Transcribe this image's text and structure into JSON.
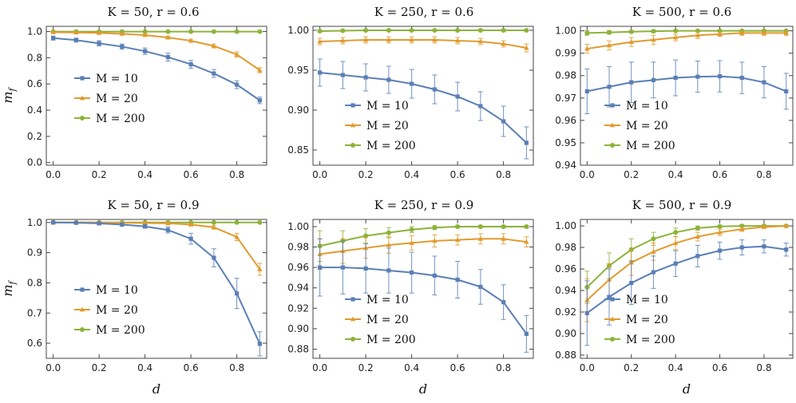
{
  "figure": {
    "ylabel": "m_f",
    "xlabel": "d"
  },
  "chart_data": [
    {
      "type": "line",
      "title": "K = 50, r = 0.6",
      "xlabel": "",
      "ylabel": "m_f",
      "xlim": [
        -0.03,
        0.93
      ],
      "ylim": [
        -0.02,
        1.04
      ],
      "xticks": [
        "0.0",
        "0.2",
        "0.4",
        "0.6",
        "0.8"
      ],
      "yticks": [
        "0.0",
        "0.2",
        "0.4",
        "0.6",
        "0.8",
        "1.0"
      ],
      "x": [
        0.0,
        0.1,
        0.2,
        0.3,
        0.4,
        0.5,
        0.6,
        0.7,
        0.8,
        0.9
      ],
      "legend_position": "left-middle",
      "series": [
        {
          "name": "M = 10",
          "color": "#5b7fb5",
          "marker": "square",
          "values": [
            0.95,
            0.935,
            0.91,
            0.885,
            0.85,
            0.805,
            0.75,
            0.68,
            0.595,
            0.475
          ],
          "err": [
            0.015,
            0.015,
            0.02,
            0.02,
            0.025,
            0.03,
            0.03,
            0.03,
            0.03,
            0.025
          ]
        },
        {
          "name": "M = 20",
          "color": "#e19b2f",
          "marker": "triangle",
          "values": [
            0.995,
            0.993,
            0.99,
            0.983,
            0.973,
            0.955,
            0.93,
            0.89,
            0.825,
            0.705
          ],
          "err": [
            0.003,
            0.004,
            0.005,
            0.006,
            0.008,
            0.01,
            0.012,
            0.015,
            0.02,
            0.02
          ]
        },
        {
          "name": "M = 200",
          "color": "#8db33a",
          "marker": "circle",
          "values": [
            1.0,
            1.0,
            1.0,
            1.0,
            1.0,
            1.0,
            1.0,
            1.0,
            1.0,
            1.0
          ],
          "err": [
            0.001,
            0.001,
            0.001,
            0.001,
            0.001,
            0.001,
            0.001,
            0.001,
            0.001,
            0.001
          ]
        }
      ]
    },
    {
      "type": "line",
      "title": "K = 250, r = 0.6",
      "xlabel": "",
      "ylabel": "",
      "xlim": [
        -0.03,
        0.93
      ],
      "ylim": [
        0.831,
        1.005
      ],
      "xticks": [
        "0.0",
        "0.2",
        "0.4",
        "0.6",
        "0.8"
      ],
      "yticks": [
        "0.85",
        "0.90",
        "0.95",
        "1.00"
      ],
      "x": [
        0.0,
        0.1,
        0.2,
        0.3,
        0.4,
        0.5,
        0.6,
        0.7,
        0.8,
        0.9
      ],
      "legend_position": "left-middle",
      "series": [
        {
          "name": "M = 10",
          "color": "#5b7fb5",
          "marker": "square",
          "values": [
            0.947,
            0.944,
            0.941,
            0.938,
            0.933,
            0.926,
            0.917,
            0.905,
            0.886,
            0.859
          ],
          "err": [
            0.017,
            0.017,
            0.017,
            0.017,
            0.018,
            0.018,
            0.018,
            0.018,
            0.019,
            0.02
          ]
        },
        {
          "name": "M = 20",
          "color": "#e19b2f",
          "marker": "triangle",
          "values": [
            0.986,
            0.987,
            0.988,
            0.988,
            0.988,
            0.988,
            0.987,
            0.986,
            0.983,
            0.978
          ],
          "err": [
            0.004,
            0.004,
            0.004,
            0.004,
            0.004,
            0.004,
            0.004,
            0.004,
            0.004,
            0.005
          ]
        },
        {
          "name": "M = 200",
          "color": "#8db33a",
          "marker": "circle",
          "values": [
            0.999,
            0.9995,
            1.0,
            1.0,
            1.0,
            1.0,
            1.0,
            1.0,
            1.0,
            1.0
          ],
          "err": [
            0.001,
            0.001,
            0.001,
            0.001,
            0.001,
            0.001,
            0.001,
            0.001,
            0.001,
            0.001
          ]
        }
      ]
    },
    {
      "type": "line",
      "title": "K = 500, r = 0.6",
      "xlabel": "",
      "ylabel": "",
      "xlim": [
        -0.03,
        0.93
      ],
      "ylim": [
        0.94,
        1.002
      ],
      "xticks": [
        "0.0",
        "0.2",
        "0.4",
        "0.6",
        "0.8"
      ],
      "yticks": [
        "0.94",
        "0.95",
        "0.96",
        "0.97",
        "0.98",
        "0.99",
        "1.00"
      ],
      "x": [
        0.0,
        0.1,
        0.2,
        0.3,
        0.4,
        0.5,
        0.6,
        0.7,
        0.8,
        0.9
      ],
      "legend_position": "left-bottom",
      "series": [
        {
          "name": "M = 10",
          "color": "#5b7fb5",
          "marker": "square",
          "values": [
            0.973,
            0.975,
            0.977,
            0.978,
            0.979,
            0.9795,
            0.9797,
            0.979,
            0.977,
            0.973
          ],
          "err": [
            0.01,
            0.009,
            0.009,
            0.008,
            0.008,
            0.007,
            0.007,
            0.007,
            0.007,
            0.008
          ]
        },
        {
          "name": "M = 20",
          "color": "#e19b2f",
          "marker": "triangle",
          "values": [
            0.992,
            0.9935,
            0.995,
            0.996,
            0.997,
            0.998,
            0.9985,
            0.999,
            0.999,
            0.999
          ],
          "err": [
            0.002,
            0.002,
            0.002,
            0.002,
            0.0015,
            0.0015,
            0.001,
            0.001,
            0.001,
            0.001
          ]
        },
        {
          "name": "M = 200",
          "color": "#8db33a",
          "marker": "circle",
          "values": [
            0.999,
            0.9993,
            0.9996,
            0.9998,
            1.0,
            1.0,
            1.0,
            1.0,
            1.0,
            1.0
          ],
          "err": [
            0.001,
            0.0008,
            0.0005,
            0.0005,
            0.0003,
            0.0003,
            0.0003,
            0.0003,
            0.0003,
            0.0003
          ]
        }
      ]
    },
    {
      "type": "line",
      "title": "K = 50, r = 0.9",
      "xlabel": "d",
      "ylabel": "m_f",
      "xlim": [
        -0.03,
        0.93
      ],
      "ylim": [
        0.55,
        1.01
      ],
      "xticks": [
        "0.0",
        "0.2",
        "0.4",
        "0.6",
        "0.8"
      ],
      "yticks": [
        "0.6",
        "0.7",
        "0.8",
        "0.9",
        "1.0"
      ],
      "x": [
        0.0,
        0.1,
        0.2,
        0.3,
        0.4,
        0.5,
        0.6,
        0.7,
        0.8,
        0.9
      ],
      "legend_position": "left-bottom",
      "series": [
        {
          "name": "M = 10",
          "color": "#5b7fb5",
          "marker": "square",
          "values": [
            1.0,
            0.999,
            0.997,
            0.993,
            0.987,
            0.975,
            0.946,
            0.883,
            0.765,
            0.598
          ],
          "err": [
            0.001,
            0.002,
            0.003,
            0.004,
            0.006,
            0.01,
            0.018,
            0.03,
            0.05,
            0.04
          ]
        },
        {
          "name": "M = 20",
          "color": "#e19b2f",
          "marker": "triangle",
          "values": [
            1.0,
            1.0,
            1.0,
            0.999,
            0.998,
            0.997,
            0.993,
            0.984,
            0.952,
            0.845
          ],
          "err": [
            0.001,
            0.001,
            0.001,
            0.001,
            0.002,
            0.002,
            0.003,
            0.006,
            0.012,
            0.02
          ]
        },
        {
          "name": "M = 200",
          "color": "#8db33a",
          "marker": "circle",
          "values": [
            1.0,
            1.0,
            1.0,
            1.0,
            1.0,
            1.0,
            1.0,
            1.0,
            1.0,
            1.0
          ],
          "err": [
            0.0005,
            0.0005,
            0.0005,
            0.0005,
            0.0005,
            0.0005,
            0.0005,
            0.0005,
            0.0005,
            0.0005
          ]
        }
      ]
    },
    {
      "type": "line",
      "title": "K = 250, r = 0.9",
      "xlabel": "d",
      "ylabel": "",
      "xlim": [
        -0.03,
        0.93
      ],
      "ylim": [
        0.871,
        1.007
      ],
      "xticks": [
        "0.0",
        "0.2",
        "0.4",
        "0.6",
        "0.8"
      ],
      "yticks": [
        "0.88",
        "0.90",
        "0.92",
        "0.94",
        "0.96",
        "0.98",
        "1.00"
      ],
      "x": [
        0.0,
        0.1,
        0.2,
        0.3,
        0.4,
        0.5,
        0.6,
        0.7,
        0.8,
        0.9
      ],
      "legend_position": "left-bottom",
      "series": [
        {
          "name": "M = 10",
          "color": "#5b7fb5",
          "marker": "square",
          "values": [
            0.96,
            0.96,
            0.959,
            0.957,
            0.955,
            0.952,
            0.948,
            0.941,
            0.926,
            0.895
          ],
          "err": [
            0.028,
            0.026,
            0.024,
            0.022,
            0.02,
            0.019,
            0.018,
            0.017,
            0.017,
            0.018
          ]
        },
        {
          "name": "M = 20",
          "color": "#e19b2f",
          "marker": "triangle",
          "values": [
            0.973,
            0.976,
            0.979,
            0.982,
            0.984,
            0.986,
            0.987,
            0.988,
            0.988,
            0.985
          ],
          "err": [
            0.015,
            0.012,
            0.01,
            0.008,
            0.007,
            0.006,
            0.005,
            0.005,
            0.005,
            0.005
          ]
        },
        {
          "name": "M = 200",
          "color": "#8db33a",
          "marker": "circle",
          "values": [
            0.981,
            0.986,
            0.991,
            0.994,
            0.997,
            0.999,
            1.0,
            1.0,
            1.0,
            1.0
          ],
          "err": [
            0.015,
            0.01,
            0.007,
            0.005,
            0.003,
            0.002,
            0.001,
            0.001,
            0.001,
            0.001
          ]
        }
      ]
    },
    {
      "type": "line",
      "title": "K = 500, r = 0.9",
      "xlabel": "d",
      "ylabel": "",
      "xlim": [
        -0.03,
        0.93
      ],
      "ylim": [
        0.877,
        1.006
      ],
      "xticks": [
        "0.0",
        "0.2",
        "0.4",
        "0.6",
        "0.8"
      ],
      "yticks": [
        "0.88",
        "0.90",
        "0.92",
        "0.94",
        "0.96",
        "0.98",
        "1.00"
      ],
      "x": [
        0.0,
        0.1,
        0.2,
        0.3,
        0.4,
        0.5,
        0.6,
        0.7,
        0.8,
        0.9
      ],
      "legend_position": "left-bottom",
      "series": [
        {
          "name": "M = 10",
          "color": "#5b7fb5",
          "marker": "square",
          "values": [
            0.919,
            0.934,
            0.947,
            0.957,
            0.965,
            0.972,
            0.977,
            0.98,
            0.981,
            0.978
          ],
          "err": [
            0.03,
            0.026,
            0.02,
            0.015,
            0.012,
            0.01,
            0.008,
            0.007,
            0.006,
            0.006
          ]
        },
        {
          "name": "M = 20",
          "color": "#e19b2f",
          "marker": "triangle",
          "values": [
            0.931,
            0.95,
            0.966,
            0.976,
            0.984,
            0.99,
            0.994,
            0.997,
            0.999,
            1.0
          ],
          "err": [
            0.02,
            0.015,
            0.012,
            0.008,
            0.006,
            0.004,
            0.003,
            0.002,
            0.001,
            0.001
          ]
        },
        {
          "name": "M = 200",
          "color": "#8db33a",
          "marker": "circle",
          "values": [
            0.943,
            0.963,
            0.978,
            0.988,
            0.994,
            0.998,
            0.9995,
            1.0,
            1.0,
            1.0
          ],
          "err": [
            0.015,
            0.012,
            0.01,
            0.006,
            0.004,
            0.002,
            0.001,
            0.001,
            0.001,
            0.001
          ]
        }
      ]
    }
  ]
}
